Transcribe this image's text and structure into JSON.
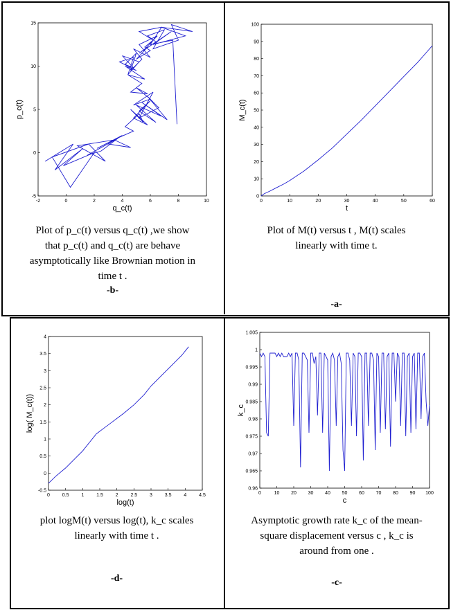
{
  "colors": {
    "line": "#1f1fd0",
    "axis": "#000000",
    "frame": "#000000"
  },
  "panels": {
    "b": {
      "caption_lines": [
        "Plot of p_c(t) versus q_c(t) ,we show",
        "that p_c(t) and q_c(t) are behave",
        "asymptotically like Brownian motion in",
        "time t ."
      ],
      "tag": "-b-"
    },
    "a": {
      "caption_lines": [
        "Plot of M(t) versus t , M(t) scales",
        "linearly with time t."
      ],
      "tag": "-a-"
    },
    "d": {
      "caption_lines": [
        "plot logM(t) versus log(t), k_c scales",
        "linearly with time t ."
      ],
      "tag": "-d-"
    },
    "c": {
      "caption_lines": [
        "Asymptotic growth rate k_c of the mean-",
        "square displacement versus c , k_c is",
        "around from one ."
      ],
      "tag": "-c-"
    }
  },
  "chart_data": [
    {
      "id": "b",
      "type": "line",
      "xlabel": "q_c(t)",
      "ylabel": "p_c(t)",
      "xlim": [
        -2,
        10
      ],
      "ylim": [
        -5,
        15
      ],
      "xticks": [
        "-2",
        "0",
        "2",
        "4",
        "6",
        "8",
        "10"
      ],
      "yticks": [
        "-5",
        "0",
        "5",
        "10",
        "15"
      ],
      "x": [
        -1.5,
        0.5,
        -0.8,
        1.2,
        -0.2,
        2.0,
        0.3,
        -1.0,
        1.6,
        2.8,
        0.8,
        3.5,
        1.5,
        2.5,
        3.8,
        2.2,
        4.0,
        3.0,
        4.6,
        3.4,
        4.8,
        4.2,
        5.2,
        5.5,
        4.6,
        5.8,
        4.8,
        6.0,
        5.2,
        6.4,
        5.0,
        6.8,
        5.4,
        7.2,
        5.8,
        6.6,
        5.2,
        6.2,
        4.8,
        6.0,
        5.0,
        5.8,
        4.6,
        5.4,
        4.4,
        5.6,
        4.2,
        5.0,
        3.8,
        4.8,
        4.4,
        5.2,
        4.0,
        4.8,
        4.2,
        5.0,
        4.6,
        5.4,
        4.8,
        6.0,
        5.2,
        6.5,
        5.5,
        7.5,
        6.2,
        8.5,
        6.8,
        9.0,
        7.5,
        8.0,
        6.2,
        7.0,
        5.8,
        6.4,
        5.2,
        5.8,
        5.0,
        6.0,
        5.6,
        6.2,
        5.2,
        6.8,
        6.0,
        7.6,
        7.9
      ],
      "y": [
        -1.0,
        1.0,
        -2.0,
        0.5,
        -1.5,
        0.0,
        -4.0,
        -0.5,
        1.0,
        -1.0,
        0.8,
        1.5,
        -0.3,
        0.2,
        1.8,
        0.5,
        2.0,
        1.0,
        0.6,
        1.5,
        2.5,
        3.0,
        4.5,
        3.5,
        5.0,
        3.2,
        4.0,
        6.0,
        4.8,
        3.5,
        5.5,
        4.2,
        5.8,
        3.8,
        6.5,
        5.2,
        4.0,
        7.0,
        5.5,
        6.2,
        7.5,
        6.8,
        7.0,
        8.0,
        9.0,
        8.5,
        10.0,
        9.5,
        10.5,
        11.0,
        9.0,
        10.5,
        11.2,
        9.8,
        10.2,
        11.5,
        9.5,
        10.8,
        12.0,
        11.0,
        12.5,
        13.5,
        11.8,
        14.0,
        12.5,
        13.5,
        14.5,
        14.0,
        14.8,
        13.0,
        12.0,
        14.2,
        13.5,
        12.8,
        11.5,
        12.2,
        10.8,
        11.8,
        12.2,
        13.0,
        14.0,
        14.5,
        12.5,
        13.0,
        3.3
      ]
    },
    {
      "id": "a",
      "type": "line",
      "xlabel": "t",
      "ylabel": "M_c(t)",
      "xlim": [
        0,
        60
      ],
      "ylim": [
        0,
        100
      ],
      "xticks": [
        "0",
        "10",
        "20",
        "30",
        "40",
        "50",
        "60"
      ],
      "yticks": [
        "0",
        "10",
        "20",
        "30",
        "40",
        "50",
        "60",
        "70",
        "80",
        "90",
        "100"
      ],
      "x": [
        0,
        1,
        2,
        3,
        5,
        8,
        10,
        15,
        20,
        25,
        30,
        35,
        40,
        45,
        50,
        55,
        60
      ],
      "y": [
        0,
        1.2,
        2.0,
        2.8,
        4.5,
        7.0,
        9.0,
        14.5,
        21.0,
        28.0,
        36.0,
        44.0,
        52.5,
        61.0,
        69.5,
        78.0,
        87.5
      ]
    },
    {
      "id": "d",
      "type": "line",
      "xlabel": "log(t)",
      "ylabel": "log( M_c(t))",
      "xlim": [
        0,
        4.5
      ],
      "ylim": [
        -0.5,
        4
      ],
      "xticks": [
        "0",
        "0.5",
        "1",
        "1.5",
        "2",
        "2.5",
        "3",
        "3.5",
        "4",
        "4.5"
      ],
      "yticks": [
        "-0.5",
        "0",
        "0.5",
        "1",
        "1.5",
        "2",
        "2.5",
        "3",
        "3.5",
        "4"
      ],
      "x": [
        0,
        0.2,
        0.5,
        0.8,
        1.0,
        1.2,
        1.4,
        1.6,
        1.8,
        2.0,
        2.2,
        2.5,
        2.8,
        3.0,
        3.3,
        3.6,
        3.9,
        4.1
      ],
      "y": [
        -0.3,
        -0.1,
        0.15,
        0.45,
        0.65,
        0.9,
        1.15,
        1.3,
        1.45,
        1.6,
        1.75,
        2.0,
        2.3,
        2.55,
        2.85,
        3.15,
        3.45,
        3.7
      ]
    },
    {
      "id": "c",
      "type": "line",
      "xlabel": "c",
      "ylabel": "k_c",
      "xlim": [
        0,
        100
      ],
      "ylim": [
        0.96,
        1.005
      ],
      "xticks": [
        "0",
        "10",
        "20",
        "30",
        "40",
        "50",
        "60",
        "70",
        "80",
        "90",
        "100"
      ],
      "yticks": [
        "0.96",
        "0.965",
        "0.97",
        "0.975",
        "0.98",
        "0.985",
        "0.99",
        "0.995",
        "1",
        "1.005"
      ],
      "x": [
        0,
        1,
        2,
        3,
        4,
        5,
        6,
        7,
        8,
        9,
        10,
        11,
        12,
        13,
        14,
        15,
        16,
        17,
        18,
        19,
        20,
        21,
        22,
        23,
        24,
        25,
        26,
        27,
        28,
        29,
        30,
        31,
        32,
        33,
        34,
        35,
        36,
        37,
        38,
        39,
        40,
        41,
        42,
        43,
        44,
        45,
        46,
        47,
        48,
        49,
        50,
        51,
        52,
        53,
        54,
        55,
        56,
        57,
        58,
        59,
        60,
        61,
        62,
        63,
        64,
        65,
        66,
        67,
        68,
        69,
        70,
        71,
        72,
        73,
        74,
        75,
        76,
        77,
        78,
        79,
        80,
        81,
        82,
        83,
        84,
        85,
        86,
        87,
        88,
        89,
        90,
        91,
        92,
        93,
        94,
        95,
        96,
        97,
        98,
        99,
        100
      ],
      "y": [
        0.999,
        0.998,
        0.999,
        0.998,
        0.976,
        0.975,
        0.999,
        0.999,
        0.999,
        0.999,
        0.998,
        0.999,
        0.998,
        0.999,
        0.998,
        0.998,
        0.998,
        0.999,
        0.998,
        0.999,
        0.978,
        0.999,
        0.999,
        0.997,
        0.966,
        0.999,
        0.999,
        0.998,
        0.997,
        0.976,
        0.999,
        0.999,
        0.996,
        0.998,
        0.981,
        0.999,
        0.999,
        0.976,
        0.999,
        0.998,
        0.997,
        0.965,
        0.998,
        0.999,
        0.997,
        0.978,
        0.998,
        0.999,
        0.996,
        0.971,
        0.965,
        0.999,
        0.999,
        0.997,
        0.978,
        0.999,
        0.998,
        0.975,
        0.999,
        0.999,
        0.998,
        0.968,
        0.999,
        0.999,
        0.978,
        0.999,
        0.999,
        0.997,
        0.971,
        0.999,
        0.998,
        0.976,
        0.999,
        0.999,
        0.977,
        0.998,
        0.999,
        0.972,
        0.999,
        0.999,
        0.985,
        0.999,
        0.998,
        0.978,
        0.999,
        0.999,
        0.975,
        0.998,
        0.999,
        0.976,
        0.998,
        0.999,
        0.977,
        0.999,
        0.999,
        0.98,
        0.998,
        0.999,
        0.985,
        0.978,
        0.984
      ]
    }
  ]
}
